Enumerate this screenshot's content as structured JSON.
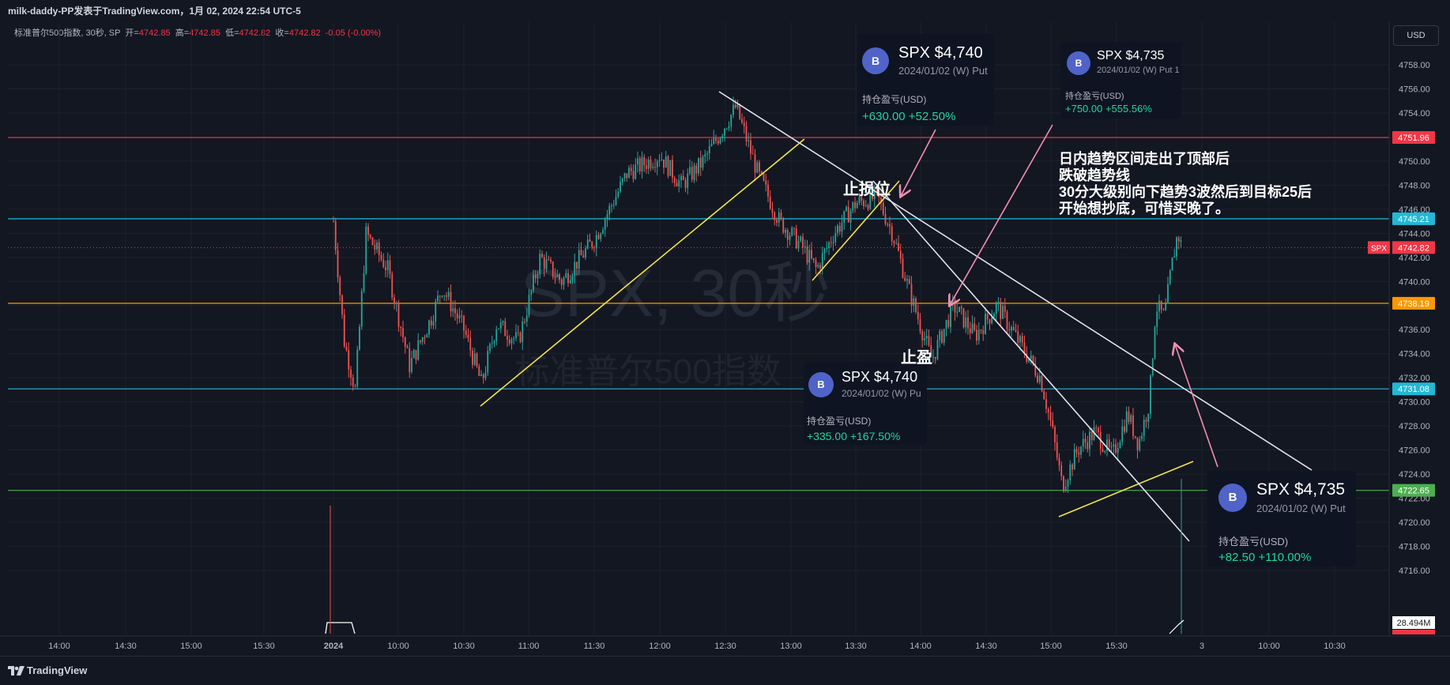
{
  "header": {
    "title": "milk-daddy-PP发表于TradingView.com，1月 02, 2024 22:54 UTC-5"
  },
  "legend": {
    "symbol": "标准普尔500指数, 30秒, SP",
    "open_label": "开=",
    "open": "4742.85",
    "high_label": "高=",
    "high": "4742.85",
    "low_label": "低=",
    "low": "4742.82",
    "close_label": "收=",
    "close": "4742.82",
    "change": "-0.05 (-0.00%)"
  },
  "currency": "USD",
  "watermark": {
    "line1": "SPX, 30秒",
    "line2": "标准普尔500指数"
  },
  "cards": [
    {
      "symbol": "SPX $4,740",
      "sub": "2024/01/02 (W) Put",
      "pnl_label": "持仓盈亏(USD)",
      "pnl": "+630.00 +52.50%",
      "avatar": "B"
    },
    {
      "symbol": "SPX $4,735",
      "sub": "2024/01/02 (W) Put 1",
      "pnl_label": "持仓盈亏(USD)",
      "pnl": "+750.00 +555.56%",
      "avatar": "B"
    },
    {
      "symbol": "SPX $4,740",
      "sub": "2024/01/02 (W) Pu",
      "pnl_label": "持仓盈亏(USD)",
      "pnl": "+335.00 +167.50%",
      "avatar": "B"
    },
    {
      "symbol": "SPX $4,735",
      "sub": "2024/01/02 (W) Put",
      "pnl_label": "持仓盈亏(USD)",
      "pnl": "+82.50 +110.00%",
      "avatar": "B"
    }
  ],
  "annotations": {
    "stop_loss": "止损位",
    "take_profit": "止盈",
    "note_lines": [
      "日内趋势区间走出了顶部后",
      "跌破趋势线",
      "30分大级别向下趋势3波然后到目标25后",
      "开始想抄底，可惜买晚了。"
    ]
  },
  "footer": {
    "brand": "TradingView"
  },
  "chart_data": {
    "type": "candlestick",
    "symbol": "SPX",
    "interval": "30秒",
    "y_ticks": [
      4716,
      4718,
      4720,
      4722,
      4724,
      4726,
      4728,
      4730,
      4732,
      4734,
      4736,
      4738,
      4740,
      4742,
      4744,
      4746,
      4748,
      4750,
      4752,
      4754,
      4756,
      4758
    ],
    "ylim": [
      4714.5,
      4759.5
    ],
    "x_ticks": [
      "14:00",
      "14:30",
      "15:00",
      "15:30",
      "2024",
      "10:00",
      "10:30",
      "11:00",
      "11:30",
      "12:00",
      "12:30",
      "13:00",
      "13:30",
      "14:00",
      "14:30",
      "15:00",
      "15:30",
      "3",
      "10:00",
      "10:30"
    ],
    "horizontal_levels": [
      {
        "value": 4751.96,
        "label": "4751.96",
        "color": "#f23645"
      },
      {
        "value": 4745.21,
        "label": "4745.21",
        "color": "#22b8d6"
      },
      {
        "value": 4738.19,
        "label": "4738.19",
        "color": "#ff9800"
      },
      {
        "value": 4731.08,
        "label": "4731.08",
        "color": "#22b8d6"
      },
      {
        "value": 4722.65,
        "label": "4722.65",
        "color": "#4caf50"
      }
    ],
    "last_price": {
      "symbol": "SPX",
      "value": "4742.82",
      "color": "#f23645"
    },
    "volume_label": "28.494M",
    "price_path": [
      [
        "09:30",
        4745.0
      ],
      [
        "09:35",
        4735.0
      ],
      [
        "09:40",
        4731.0
      ],
      [
        "09:45",
        4744.0
      ],
      [
        "09:55",
        4741.0
      ],
      [
        "10:05",
        4733.0
      ],
      [
        "10:15",
        4737.0
      ],
      [
        "10:20",
        4739.5
      ],
      [
        "10:30",
        4736.0
      ],
      [
        "10:38",
        4731.5
      ],
      [
        "10:45",
        4736.5
      ],
      [
        "10:55",
        4735.0
      ],
      [
        "11:05",
        4742.0
      ],
      [
        "11:15",
        4740.0
      ],
      [
        "11:30",
        4743.5
      ],
      [
        "11:45",
        4749.0
      ],
      [
        "12:00",
        4750.5
      ],
      [
        "12:10",
        4748.0
      ],
      [
        "12:20",
        4750.0
      ],
      [
        "12:35",
        4754.5
      ],
      [
        "12:45",
        4749.0
      ],
      [
        "12:55",
        4745.0
      ],
      [
        "13:05",
        4743.0
      ],
      [
        "13:12",
        4741.0
      ],
      [
        "13:20",
        4744.0
      ],
      [
        "13:30",
        4746.5
      ],
      [
        "13:40",
        4747.0
      ],
      [
        "13:47",
        4744.0
      ],
      [
        "13:55",
        4739.0
      ],
      [
        "14:05",
        4733.5
      ],
      [
        "14:15",
        4738.0
      ],
      [
        "14:25",
        4735.5
      ],
      [
        "14:35",
        4738.0
      ],
      [
        "14:45",
        4735.0
      ],
      [
        "14:55",
        4732.0
      ],
      [
        "15:00",
        4728.0
      ],
      [
        "15:05",
        4723.0
      ],
      [
        "15:12",
        4726.0
      ],
      [
        "15:20",
        4727.5
      ],
      [
        "15:28",
        4725.5
      ],
      [
        "15:35",
        4729.0
      ],
      [
        "15:40",
        4726.5
      ],
      [
        "15:45",
        4730.0
      ],
      [
        "15:48",
        4738.0
      ],
      [
        "15:52",
        4737.0
      ],
      [
        "15:55",
        4741.0
      ],
      [
        "15:58",
        4744.0
      ],
      [
        "16:00",
        4742.82
      ]
    ]
  },
  "colors": {
    "up": "#26a69a",
    "down": "#ef5350",
    "trendline_yellow": "#f5e642",
    "trendline_white": "#e0e3eb",
    "arrow_pink": "#f48fb1",
    "card_bg": "#0f1422",
    "pnl_green": "#22d69a"
  }
}
